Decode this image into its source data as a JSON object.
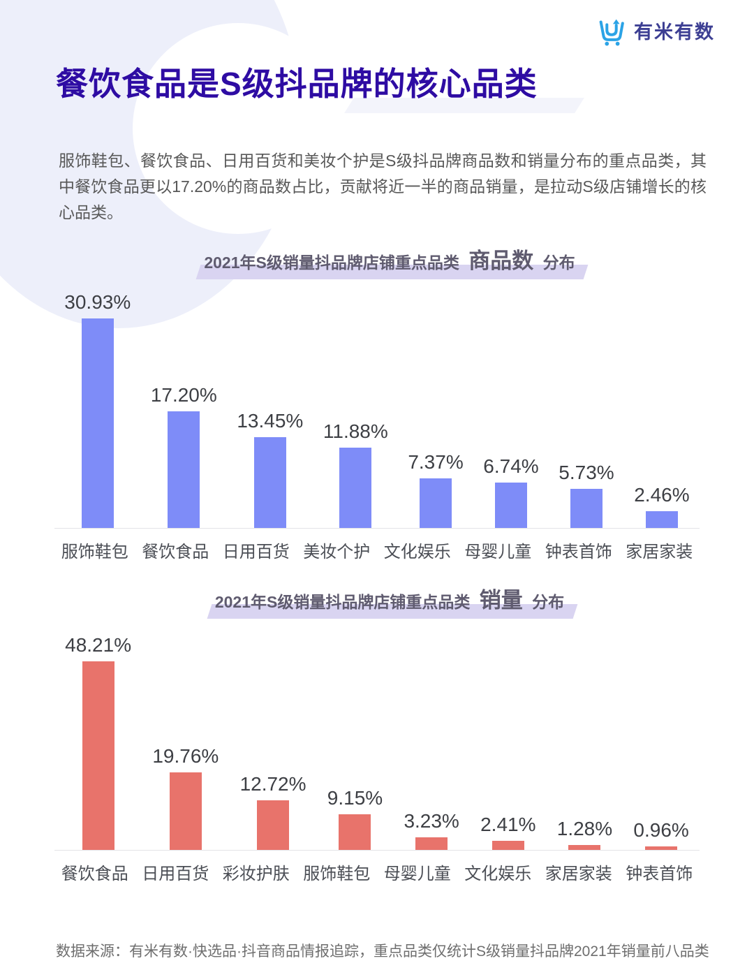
{
  "logo": {
    "text": "有米有数",
    "icon": "shopping-cart-arrow-icon",
    "icon_color": "#2ba3e6",
    "text_color": "#3d3f93"
  },
  "header": {
    "title": "餐饮食品是S级抖品牌的核心品类",
    "title_color": "#2e0ca3"
  },
  "intro": {
    "text": "服饰鞋包、餐饮食品、日用百货和美妆个护是S级抖品牌商品数和销量分布的重点品类，其中餐饮食品更以17.20%的商品数占比，贡献将近一半的商品销量，是拉动S级店铺增长的核心品类。"
  },
  "chart_data": [
    {
      "type": "bar",
      "title_prefix": "2021年S级销量抖品牌店铺重点品类",
      "title_emph": "商品数",
      "title_suffix": "分布",
      "categories": [
        "服饰鞋包",
        "餐饮食品",
        "日用百货",
        "美妆个护",
        "文化娱乐",
        "母婴儿童",
        "钟表首饰",
        "家居家装"
      ],
      "values": [
        30.93,
        17.2,
        13.45,
        11.88,
        7.37,
        6.74,
        5.73,
        2.46
      ],
      "labels": [
        "30.93%",
        "17.20%",
        "13.45%",
        "11.88%",
        "7.37%",
        "6.74%",
        "5.73%",
        "2.46%"
      ],
      "unit": "%",
      "bar_color": "#7e8cf8",
      "ylim": [
        0,
        33
      ],
      "grid": false,
      "legend_position": "none",
      "highlight_color": "#d9d4f1"
    },
    {
      "type": "bar",
      "title_prefix": "2021年S级销量抖品牌店铺重点品类",
      "title_emph": "销量",
      "title_suffix": "分布",
      "categories": [
        "餐饮食品",
        "日用百货",
        "彩妆护肤",
        "服饰鞋包",
        "母婴儿童",
        "文化娱乐",
        "家居家装",
        "钟表首饰"
      ],
      "values": [
        48.21,
        19.76,
        12.72,
        9.15,
        3.23,
        2.41,
        1.28,
        0.96
      ],
      "labels": [
        "48.21%",
        "19.76%",
        "12.72%",
        "9.15%",
        "3.23%",
        "2.41%",
        "1.28%",
        "0.96%"
      ],
      "unit": "%",
      "bar_color": "#e8736b",
      "ylim": [
        0,
        52
      ],
      "grid": false,
      "legend_position": "none",
      "highlight_color": "#d9d4f1"
    }
  ],
  "footer": {
    "source": "数据来源：有米有数·快选品·抖音商品情报追踪，重点品类仅统计S级销量抖品牌2021年销量前八品类"
  },
  "colors": {
    "bar_blue": "#7e8cf8",
    "bar_red": "#e8736b",
    "background_blob": "#edeffa",
    "axis_line": "#e3e3e7"
  }
}
